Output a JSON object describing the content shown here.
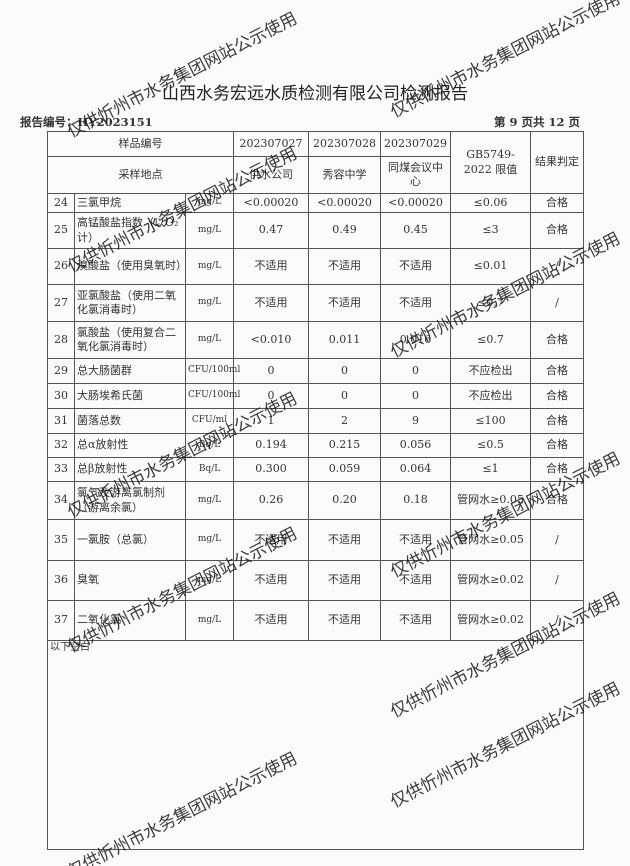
{
  "title": "山西水务宏远水质检测有限公司检测报告",
  "report_no": "报告编号：HY2023151",
  "page_info": "第 9 页共 12 页",
  "header": {
    "sample_no_label": "样品编号",
    "location_label": "采样地点",
    "samples": [
      "202307027",
      "202307028",
      "202307029"
    ],
    "locations": [
      "供水公司",
      "秀容中学",
      "同煤会议中心"
    ],
    "limit_label": "GB5749-2022 限值",
    "result_label": "结果判定"
  },
  "rows": [
    {
      "no": "24",
      "name": "三氯甲烷",
      "unit": "mg/L",
      "v": [
        "<0.00020",
        "<0.00020",
        "<0.00020"
      ],
      "limit": "≤0.06",
      "result": "合格"
    },
    {
      "no": "25",
      "name": "高锰酸盐指数（以O₂计）",
      "unit": "mg/L",
      "v": [
        "0.47",
        "0.49",
        "0.45"
      ],
      "limit": "≤3",
      "result": "合格"
    },
    {
      "no": "26",
      "name": "溴酸盐（使用臭氧时）",
      "unit": "mg/L",
      "v": [
        "不适用",
        "不适用",
        "不适用"
      ],
      "limit": "≤0.01",
      "result": "/"
    },
    {
      "no": "27",
      "name": "亚氯酸盐（使用二氧化氯消毒时）",
      "unit": "mg/L",
      "v": [
        "不适用",
        "不适用",
        "不适用"
      ],
      "limit": "≤0.7",
      "result": "/"
    },
    {
      "no": "28",
      "name": "氯酸盐（使用复合二氧化氯消毒时）",
      "unit": "mg/L",
      "v": [
        "<0.010",
        "0.011",
        "0.016"
      ],
      "limit": "≤0.7",
      "result": "合格"
    },
    {
      "no": "29",
      "name": "总大肠菌群",
      "unit": "CFU/100ml",
      "v": [
        "0",
        "0",
        "0"
      ],
      "limit": "不应检出",
      "result": "合格"
    },
    {
      "no": "30",
      "name": "大肠埃希氏菌",
      "unit": "CFU/100ml",
      "v": [
        "0",
        "0",
        "0"
      ],
      "limit": "不应检出",
      "result": "合格"
    },
    {
      "no": "31",
      "name": "菌落总数",
      "unit": "CFU/ml",
      "v": [
        "1",
        "2",
        "9"
      ],
      "limit": "≤100",
      "result": "合格"
    },
    {
      "no": "32",
      "name": "总α放射性",
      "unit": "Bq/L",
      "v": [
        "0.194",
        "0.215",
        "0.056"
      ],
      "limit": "≤0.5",
      "result": "合格"
    },
    {
      "no": "33",
      "name": "总β放射性",
      "unit": "Bq/L",
      "v": [
        "0.300",
        "0.059",
        "0.064"
      ],
      "limit": "≤1",
      "result": "合格"
    },
    {
      "no": "34",
      "name": "氯气及游离氯制剂（游离余氯）",
      "unit": "mg/L",
      "v": [
        "0.26",
        "0.20",
        "0.18"
      ],
      "limit": "管网水≥0.05",
      "result": "合格"
    },
    {
      "no": "35",
      "name": "一氯胺（总氯）",
      "unit": "mg/L",
      "v": [
        "不适用",
        "不适用",
        "不适用"
      ],
      "limit": "管网水≥0.05",
      "result": "/"
    },
    {
      "no": "36",
      "name": "臭氧",
      "unit": "mg/L",
      "v": [
        "不适用",
        "不适用",
        "不适用"
      ],
      "limit": "管网水≥0.02",
      "result": "/"
    },
    {
      "no": "37",
      "name": "二氧化氯",
      "unit": "mg/L",
      "v": [
        "不适用",
        "不适用",
        "不适用"
      ],
      "limit": "管网水≥0.02",
      "result": "/"
    }
  ],
  "blank_note": "以下空白",
  "watermark": "仅供忻州市水务集团网站公示使用"
}
